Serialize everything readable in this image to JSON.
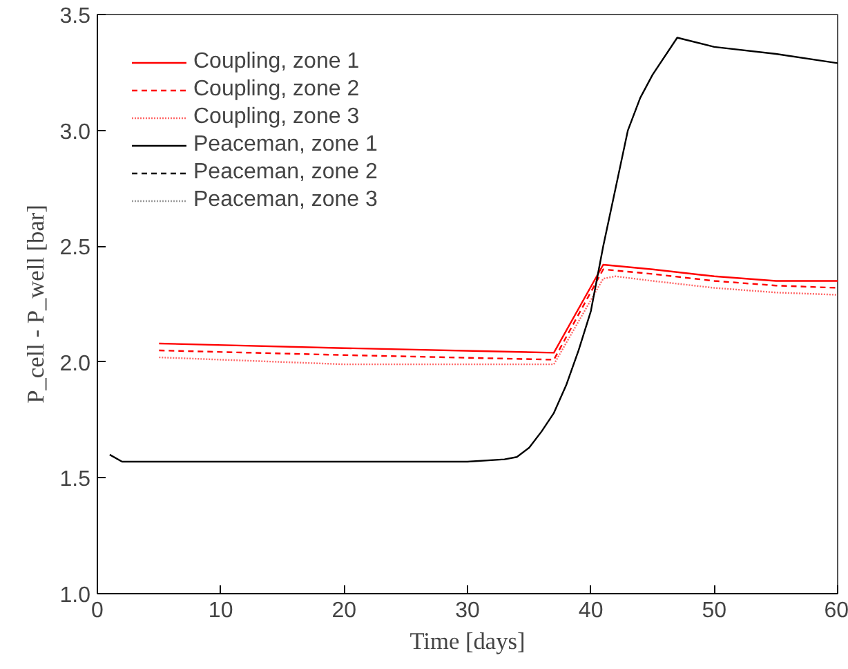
{
  "chart_data": {
    "type": "line",
    "xlabel": "Time [days]",
    "ylabel": "P_cell - P_well [bar]",
    "xlim": [
      0,
      60
    ],
    "ylim": [
      1.0,
      3.5
    ],
    "xticks": [
      0,
      10,
      20,
      30,
      40,
      50,
      60
    ],
    "yticks": [
      {
        "value": 1.0,
        "label": "1.0"
      },
      {
        "value": 1.5,
        "label": "1.5"
      },
      {
        "value": 2.0,
        "label": "2.0"
      },
      {
        "value": 2.5,
        "label": "2.5"
      },
      {
        "value": 3.0,
        "label": "3.0"
      },
      {
        "value": 3.5,
        "label": "3.5"
      }
    ],
    "grid": false,
    "legend": "top left",
    "marker": "none",
    "series": [
      {
        "name": "Coupling, zone 1",
        "color": "#ff0000",
        "line_style": "solid",
        "x": [
          5,
          20,
          37,
          41,
          45,
          50,
          55,
          60
        ],
        "values": [
          2.08,
          2.06,
          2.04,
          2.42,
          2.4,
          2.37,
          2.35,
          2.35
        ]
      },
      {
        "name": "Coupling, zone 2",
        "color": "#ff0000",
        "line_style": "dashed",
        "x": [
          5,
          20,
          37,
          41,
          45,
          50,
          55,
          60
        ],
        "values": [
          2.05,
          2.03,
          2.01,
          2.4,
          2.38,
          2.35,
          2.33,
          2.32
        ]
      },
      {
        "name": "Coupling, zone 3",
        "color": "#ff6666",
        "line_style": "dotted",
        "x": [
          5,
          20,
          37,
          41,
          42,
          45,
          50,
          55,
          60
        ],
        "values": [
          2.02,
          1.99,
          1.99,
          2.36,
          2.37,
          2.35,
          2.32,
          2.3,
          2.29
        ]
      },
      {
        "name": "Peaceman, zone 1",
        "color": "#000000",
        "line_style": "solid",
        "x": [
          1,
          2,
          10,
          20,
          30,
          33,
          34,
          35,
          36,
          37,
          38,
          39,
          40,
          41,
          42,
          43,
          44,
          45,
          47,
          50,
          55,
          60
        ],
        "values": [
          1.6,
          1.57,
          1.57,
          1.57,
          1.57,
          1.58,
          1.59,
          1.63,
          1.7,
          1.78,
          1.9,
          2.05,
          2.22,
          2.5,
          2.75,
          3.0,
          3.14,
          3.24,
          3.4,
          3.36,
          3.33,
          3.29
        ]
      },
      {
        "name": "Peaceman, zone 2",
        "color": "#000000",
        "line_style": "dashed"
      },
      {
        "name": "Peaceman, zone 3",
        "color": "#999999",
        "line_style": "dotted"
      }
    ]
  }
}
